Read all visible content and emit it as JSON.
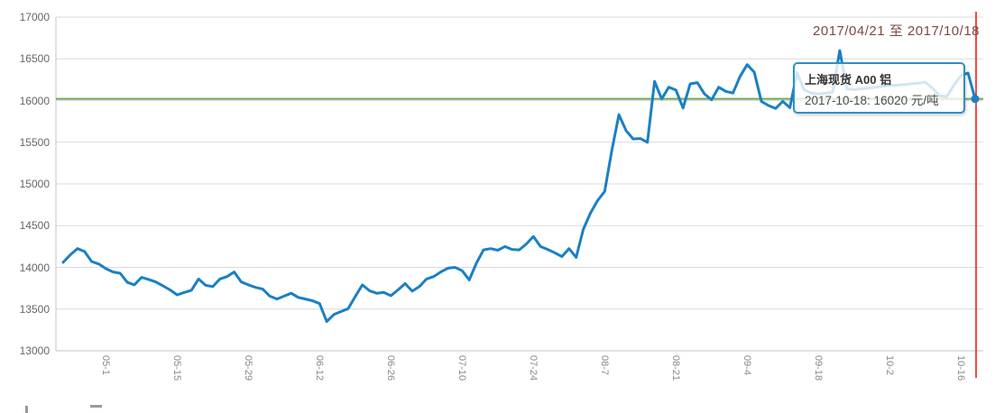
{
  "title": "2017/04/21 至 2017/10/18",
  "tooltip": {
    "series_name": "上海现货 A00 铝",
    "value_text": "2017-10-18: 16020 元/吨"
  },
  "colors": {
    "line": "#1a80c4",
    "threshold_line": "#6aa84f",
    "current_date_line": "#f20d05",
    "grid": "#d9d9d9",
    "axis": "#c6c6c6",
    "title_text": "#7b4a42",
    "y_label_text": "#666666",
    "x_label_text": "#888888",
    "tooltip_border": "#2f8fc5",
    "marker": "#1a80c4"
  },
  "chart_data": {
    "type": "line",
    "title": "2017/04/21 至 2017/10/18",
    "series_name": "上海现货 A00 铝",
    "unit": "元/吨",
    "start_date": "2017-04-21",
    "end_date": "2017-10-18",
    "frequency": "consecutive weekdays",
    "ylim": [
      13000,
      17000
    ],
    "y_ticks": [
      13000,
      13500,
      14000,
      14500,
      15000,
      15500,
      16000,
      16500,
      17000
    ],
    "x_tick_labels": [
      "05-1",
      "05-15",
      "05-29",
      "06-12",
      "06-26",
      "07-10",
      "07-24",
      "08-7",
      "08-21",
      "09-4",
      "09-18",
      "10-2",
      "10-16"
    ],
    "x_tick_indices": [
      6,
      16,
      26,
      36,
      46,
      56,
      66,
      76,
      86,
      96,
      106,
      116,
      126
    ],
    "grid": true,
    "legend": false,
    "threshold_value": 16020,
    "last_point": {
      "date": "2017-10-18",
      "value": 16020
    },
    "values": [
      14060,
      14150,
      14225,
      14190,
      14070,
      14040,
      13985,
      13945,
      13930,
      13820,
      13790,
      13880,
      13855,
      13825,
      13780,
      13730,
      13670,
      13700,
      13725,
      13860,
      13785,
      13770,
      13860,
      13890,
      13945,
      13825,
      13790,
      13760,
      13740,
      13655,
      13620,
      13655,
      13690,
      13640,
      13620,
      13600,
      13565,
      13350,
      13435,
      13470,
      13505,
      13650,
      13790,
      13720,
      13690,
      13700,
      13660,
      13730,
      13805,
      13715,
      13770,
      13860,
      13890,
      13945,
      13990,
      14000,
      13960,
      13850,
      14050,
      14210,
      14225,
      14205,
      14250,
      14215,
      14210,
      14280,
      14370,
      14250,
      14215,
      14175,
      14130,
      14225,
      14120,
      14455,
      14650,
      14800,
      14910,
      15400,
      15830,
      15640,
      15540,
      15545,
      15500,
      16230,
      16020,
      16160,
      16125,
      15910,
      16200,
      16215,
      16080,
      16010,
      16160,
      16110,
      16090,
      16290,
      16430,
      16340,
      15990,
      15940,
      15905,
      15990,
      15915,
      16330,
      16130,
      16090,
      16080,
      16090,
      16100,
      16600,
      16140,
      16130,
      16140,
      16150,
      16160,
      16170,
      16180,
      16185,
      16190,
      16200,
      16210,
      16220,
      16150,
      16060,
      16045,
      16180,
      16300,
      16330,
      16020
    ]
  }
}
